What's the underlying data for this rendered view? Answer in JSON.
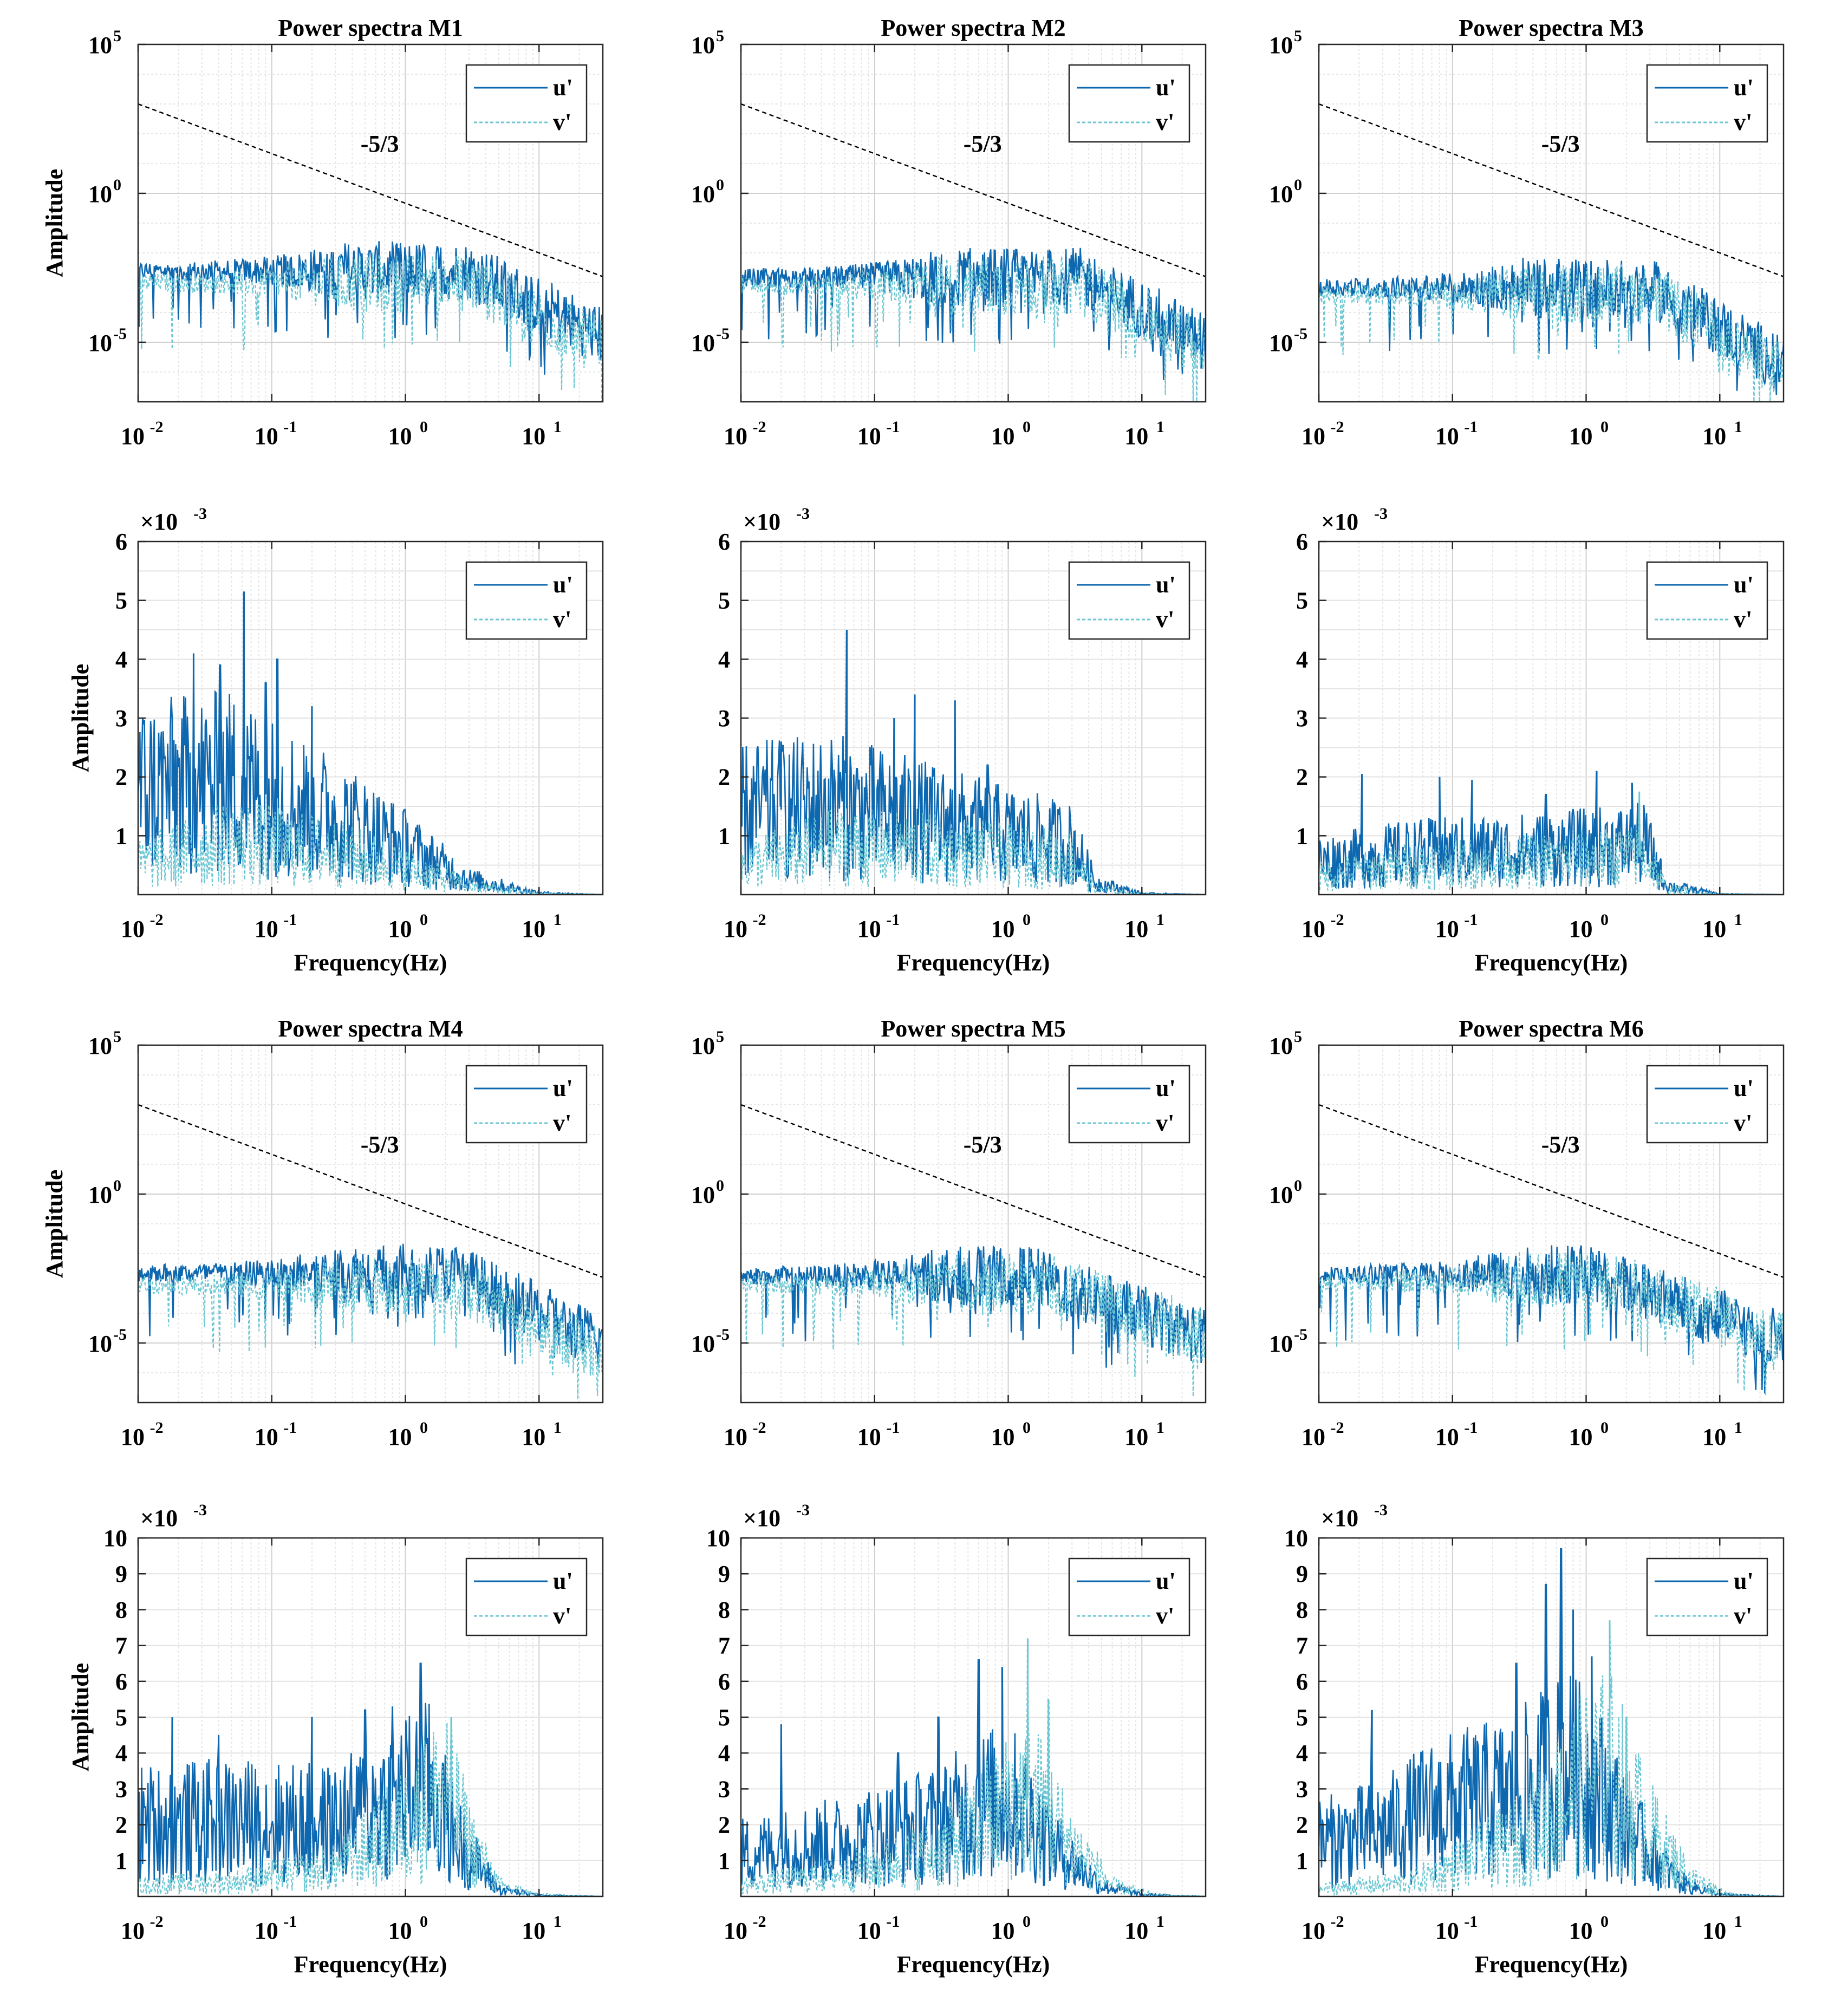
{
  "figure": {
    "color_u": "#0E68B0",
    "color_v": "#6CC7D3",
    "x_tick_labels": [
      "10",
      "10",
      "10",
      "10"
    ],
    "x_tick_exponents": [
      "-2",
      "-1",
      "0",
      "1"
    ],
    "log_y_tick_labels": [
      "10",
      "10",
      "10"
    ],
    "log_y_tick_exponents": [
      "5",
      "0",
      "-5"
    ],
    "scale_base": "×10",
    "scale_exponent": "-3",
    "legend_u": "u'",
    "legend_v": "v'",
    "slope_label": "-5/3",
    "ylabel": "Amplitude",
    "xlabel": "Frequency(Hz)"
  },
  "chart_data": [
    {
      "id": "log-M1",
      "type": "line",
      "title": "Power spectra M1",
      "xscale": "log",
      "yscale": "log",
      "xlim": [
        0.01,
        30
      ],
      "ylim": [
        1e-07,
        100000
      ],
      "ylabel": "Amplitude",
      "xlabel": "",
      "legend": "top-right",
      "series": [
        {
          "name": "u'",
          "plateau": 0.0025,
          "corner_hz": 3.0,
          "decay_exponent": -2.2
        },
        {
          "name": "v'",
          "plateau": 0.001,
          "corner_hz": 3.0,
          "decay_exponent": -2.2
        }
      ],
      "reference_line": {
        "label": "-5/3",
        "slope": -1.6667,
        "x_range": [
          0.01,
          30
        ],
        "y_start": 1000
      }
    },
    {
      "id": "log-M2",
      "type": "line",
      "title": "Power spectra M2",
      "xscale": "log",
      "yscale": "log",
      "xlim": [
        0.01,
        30
      ],
      "ylim": [
        1e-07,
        100000
      ],
      "ylabel": "",
      "xlabel": "",
      "legend": "top-right",
      "series": [
        {
          "name": "u'",
          "plateau": 0.0015,
          "corner_hz": 3.5,
          "decay_exponent": -2.3
        },
        {
          "name": "v'",
          "plateau": 0.0008,
          "corner_hz": 3.5,
          "decay_exponent": -2.3
        }
      ],
      "reference_line": {
        "label": "-5/3",
        "slope": -1.6667,
        "x_range": [
          0.01,
          30
        ],
        "y_start": 1000
      }
    },
    {
      "id": "log-M3",
      "type": "line",
      "title": "Power spectra M3",
      "xscale": "log",
      "yscale": "log",
      "xlim": [
        0.01,
        30
      ],
      "ylim": [
        1e-07,
        100000
      ],
      "ylabel": "",
      "xlabel": "",
      "legend": "top-right",
      "series": [
        {
          "name": "u'",
          "plateau": 0.0007,
          "corner_hz": 3.0,
          "decay_exponent": -2.6
        },
        {
          "name": "v'",
          "plateau": 0.0004,
          "corner_hz": 3.0,
          "decay_exponent": -2.6
        }
      ],
      "reference_line": {
        "label": "-5/3",
        "slope": -1.6667,
        "x_range": [
          0.01,
          30
        ],
        "y_start": 1000
      }
    },
    {
      "id": "lin-M1",
      "type": "line",
      "title": "",
      "xscale": "log",
      "yscale": "linear",
      "xlim": [
        0.01,
        30
      ],
      "ylim": [
        0,
        6
      ],
      "y_ticks": [
        1,
        2,
        3,
        4,
        5,
        6
      ],
      "scale": "×10^-3",
      "ylabel": "Amplitude",
      "xlabel": "Frequency(Hz)",
      "legend": "top-right",
      "series": [
        {
          "name": "u'",
          "anchors": [
            [
              0.01,
              1.8
            ],
            [
              0.05,
              1.9
            ],
            [
              0.3,
              1.3
            ],
            [
              1.0,
              0.8
            ],
            [
              3.0,
              0.25
            ],
            [
              10,
              0.03
            ],
            [
              30,
              0
            ]
          ],
          "peaks": [
            [
              0.062,
              5.15
            ],
            [
              0.026,
              4.1
            ],
            [
              0.041,
              3.9
            ],
            [
              0.11,
              4.0
            ],
            [
              0.09,
              3.6
            ],
            [
              0.2,
              3.2
            ],
            [
              0.018,
              3.0
            ]
          ]
        },
        {
          "name": "v'",
          "anchors": [
            [
              0.01,
              0.5
            ],
            [
              0.05,
              0.9
            ],
            [
              0.3,
              0.7
            ],
            [
              1.0,
              0.45
            ],
            [
              3.0,
              0.15
            ],
            [
              10,
              0.02
            ],
            [
              30,
              0
            ]
          ],
          "peaks": []
        }
      ]
    },
    {
      "id": "lin-M2",
      "type": "line",
      "title": "",
      "xscale": "log",
      "yscale": "linear",
      "xlim": [
        0.01,
        30
      ],
      "ylim": [
        0,
        6
      ],
      "y_ticks": [
        1,
        2,
        3,
        4,
        5,
        6
      ],
      "scale": "×10^-3",
      "ylabel": "",
      "xlabel": "Frequency(Hz)",
      "legend": "top-right",
      "series": [
        {
          "name": "u'",
          "anchors": [
            [
              0.01,
              1.4
            ],
            [
              0.05,
              1.5
            ],
            [
              0.3,
              1.2
            ],
            [
              1.0,
              1.0
            ],
            [
              3.0,
              0.85
            ],
            [
              4.5,
              0.2
            ],
            [
              10,
              0.02
            ],
            [
              30,
              0
            ]
          ],
          "peaks": [
            [
              0.062,
              4.5
            ],
            [
              0.2,
              3.4
            ],
            [
              0.4,
              3.3
            ],
            [
              0.02,
              2.6
            ],
            [
              0.14,
              3.0
            ],
            [
              0.7,
              2.2
            ]
          ]
        },
        {
          "name": "v'",
          "anchors": [
            [
              0.01,
              0.5
            ],
            [
              0.05,
              0.8
            ],
            [
              0.3,
              0.75
            ],
            [
              1.0,
              0.65
            ],
            [
              3.0,
              0.6
            ],
            [
              4.5,
              0.1
            ],
            [
              10,
              0.01
            ],
            [
              30,
              0
            ]
          ],
          "peaks": []
        }
      ]
    },
    {
      "id": "lin-M3",
      "type": "line",
      "title": "",
      "xscale": "log",
      "yscale": "linear",
      "xlim": [
        0.01,
        30
      ],
      "ylim": [
        0,
        6
      ],
      "y_ticks": [
        1,
        2,
        3,
        4,
        5,
        6
      ],
      "scale": "×10^-3",
      "ylabel": "",
      "xlabel": "Frequency(Hz)",
      "legend": "top-right",
      "series": [
        {
          "name": "u'",
          "anchors": [
            [
              0.01,
              0.55
            ],
            [
              0.05,
              0.7
            ],
            [
              0.3,
              0.75
            ],
            [
              1.0,
              0.8
            ],
            [
              2.8,
              0.85
            ],
            [
              4.0,
              0.15
            ],
            [
              10,
              0.01
            ],
            [
              30,
              0
            ]
          ],
          "peaks": [
            [
              0.021,
              2.05
            ],
            [
              0.08,
              2.0
            ],
            [
              0.14,
              1.95
            ],
            [
              1.2,
              2.1
            ],
            [
              2.2,
              1.9
            ],
            [
              0.5,
              1.7
            ]
          ]
        },
        {
          "name": "v'",
          "anchors": [
            [
              0.01,
              0.3
            ],
            [
              0.05,
              0.5
            ],
            [
              0.3,
              0.55
            ],
            [
              1.0,
              0.6
            ],
            [
              2.8,
              0.65
            ],
            [
              4.0,
              0.1
            ],
            [
              10,
              0.01
            ],
            [
              30,
              0
            ]
          ],
          "peaks": [
            [
              2.5,
              1.75
            ]
          ]
        }
      ]
    },
    {
      "id": "log-M4",
      "type": "line",
      "title": "Power spectra M4",
      "xscale": "log",
      "yscale": "log",
      "xlim": [
        0.01,
        30
      ],
      "ylim": [
        1e-07,
        100000
      ],
      "ylabel": "Amplitude",
      "xlabel": "",
      "legend": "top-right",
      "series": [
        {
          "name": "u'",
          "plateau": 0.0022,
          "corner_hz": 2.5,
          "decay_exponent": -2.2
        },
        {
          "name": "v'",
          "plateau": 0.0009,
          "corner_hz": 2.5,
          "decay_exponent": -2.2
        }
      ],
      "reference_line": {
        "label": "-5/3",
        "slope": -1.6667,
        "x_range": [
          0.01,
          30
        ],
        "y_start": 1000
      }
    },
    {
      "id": "log-M5",
      "type": "line",
      "title": "Power spectra M5",
      "xscale": "log",
      "yscale": "log",
      "xlim": [
        0.01,
        30
      ],
      "ylim": [
        1e-07,
        100000
      ],
      "ylabel": "",
      "xlabel": "",
      "legend": "top-right",
      "series": [
        {
          "name": "u'",
          "plateau": 0.0018,
          "corner_hz": 1.5,
          "decay_exponent": -1.6
        },
        {
          "name": "v'",
          "plateau": 0.001,
          "corner_hz": 2.0,
          "decay_exponent": -1.5
        }
      ],
      "reference_line": {
        "label": "-5/3",
        "slope": -1.6667,
        "x_range": [
          0.01,
          30
        ],
        "y_start": 1000
      }
    },
    {
      "id": "log-M6",
      "type": "line",
      "title": "Power spectra M6",
      "xscale": "log",
      "yscale": "log",
      "xlim": [
        0.01,
        30
      ],
      "ylim": [
        1e-07,
        100000
      ],
      "ylabel": "",
      "xlabel": "",
      "legend": "top-right",
      "series": [
        {
          "name": "u'",
          "plateau": 0.002,
          "corner_hz": 1.2,
          "decay_exponent": -1.6
        },
        {
          "name": "v'",
          "plateau": 0.0012,
          "corner_hz": 1.5,
          "decay_exponent": -1.5
        }
      ],
      "reference_line": {
        "label": "-5/3",
        "slope": -1.6667,
        "x_range": [
          0.01,
          30
        ],
        "y_start": 1000
      }
    },
    {
      "id": "lin-M4",
      "type": "line",
      "title": "",
      "xscale": "log",
      "yscale": "linear",
      "xlim": [
        0.01,
        30
      ],
      "ylim": [
        0,
        10
      ],
      "y_ticks": [
        1,
        2,
        3,
        4,
        5,
        6,
        7,
        8,
        9,
        10
      ],
      "scale": "×10^-3",
      "ylabel": "Amplitude",
      "xlabel": "Frequency(Hz)",
      "legend": "top-right",
      "series": [
        {
          "name": "u'",
          "anchors": [
            [
              0.01,
              2.0
            ],
            [
              0.05,
              2.1
            ],
            [
              0.3,
              2.0
            ],
            [
              1.0,
              2.8
            ],
            [
              1.5,
              3.0
            ],
            [
              2.5,
              1.5
            ],
            [
              5.0,
              0.2
            ],
            [
              10,
              0.03
            ],
            [
              30,
              0
            ]
          ],
          "peaks": [
            [
              1.3,
              6.5
            ],
            [
              0.018,
              5.0
            ],
            [
              0.5,
              5.2
            ],
            [
              0.04,
              4.5
            ],
            [
              0.2,
              5.0
            ],
            [
              0.8,
              5.3
            ]
          ]
        },
        {
          "name": "v'",
          "anchors": [
            [
              0.01,
              0.3
            ],
            [
              0.05,
              0.4
            ],
            [
              0.3,
              0.8
            ],
            [
              1.0,
              2.0
            ],
            [
              2.0,
              3.0
            ],
            [
              3.0,
              1.5
            ],
            [
              5.0,
              0.3
            ],
            [
              10,
              0.05
            ],
            [
              30,
              0
            ]
          ],
          "peaks": [
            [
              2.2,
              5.0
            ]
          ]
        }
      ]
    },
    {
      "id": "lin-M5",
      "type": "line",
      "title": "",
      "xscale": "log",
      "yscale": "linear",
      "xlim": [
        0.01,
        30
      ],
      "ylim": [
        0,
        10
      ],
      "y_ticks": [
        1,
        2,
        3,
        4,
        5,
        6,
        7,
        8,
        9,
        10
      ],
      "scale": "×10^-3",
      "ylabel": "",
      "xlabel": "Frequency(Hz)",
      "legend": "top-right",
      "series": [
        {
          "name": "u'",
          "anchors": [
            [
              0.01,
              1.2
            ],
            [
              0.05,
              1.5
            ],
            [
              0.3,
              2.0
            ],
            [
              0.7,
              2.6
            ],
            [
              1.2,
              2.5
            ],
            [
              2.5,
              1.2
            ],
            [
              5.0,
              0.3
            ],
            [
              10,
              0.05
            ],
            [
              30,
              0
            ]
          ],
          "peaks": [
            [
              0.6,
              6.6
            ],
            [
              0.9,
              6.4
            ],
            [
              0.02,
              4.8
            ],
            [
              0.15,
              4.0
            ],
            [
              0.3,
              5.0
            ]
          ]
        },
        {
          "name": "v'",
          "anchors": [
            [
              0.01,
              0.3
            ],
            [
              0.05,
              0.6
            ],
            [
              0.3,
              1.2
            ],
            [
              1.0,
              2.5
            ],
            [
              1.5,
              2.8
            ],
            [
              3.0,
              1.4
            ],
            [
              6.0,
              0.3
            ],
            [
              12,
              0.05
            ],
            [
              30,
              0
            ]
          ],
          "peaks": [
            [
              1.4,
              7.2
            ],
            [
              2.0,
              5.5
            ]
          ]
        }
      ]
    },
    {
      "id": "lin-M6",
      "type": "line",
      "title": "",
      "xscale": "log",
      "yscale": "linear",
      "xlim": [
        0.01,
        30
      ],
      "ylim": [
        0,
        10
      ],
      "y_ticks": [
        1,
        2,
        3,
        4,
        5,
        6,
        7,
        8,
        9,
        10
      ],
      "scale": "×10^-3",
      "ylabel": "",
      "xlabel": "Frequency(Hz)",
      "legend": "top-right",
      "series": [
        {
          "name": "u'",
          "anchors": [
            [
              0.01,
              1.5
            ],
            [
              0.03,
              1.8
            ],
            [
              0.07,
              2.4
            ],
            [
              0.3,
              2.8
            ],
            [
              0.7,
              3.5
            ],
            [
              1.2,
              3.0
            ],
            [
              2.5,
              1.5
            ],
            [
              5.0,
              0.4
            ],
            [
              10,
              0.05
            ],
            [
              30,
              0
            ]
          ],
          "peaks": [
            [
              0.65,
              9.7
            ],
            [
              0.5,
              8.7
            ],
            [
              0.8,
              8.0
            ],
            [
              0.025,
              5.2
            ],
            [
              0.3,
              6.5
            ],
            [
              1.1,
              6.7
            ]
          ]
        },
        {
          "name": "v'",
          "anchors": [
            [
              0.01,
              0.2
            ],
            [
              0.05,
              0.4
            ],
            [
              0.3,
              1.5
            ],
            [
              1.0,
              3.2
            ],
            [
              1.5,
              3.5
            ],
            [
              3.0,
              1.8
            ],
            [
              6.0,
              0.5
            ],
            [
              12,
              0.05
            ],
            [
              30,
              0
            ]
          ],
          "peaks": [
            [
              1.5,
              7.7
            ],
            [
              2.0,
              5.0
            ]
          ]
        }
      ]
    }
  ]
}
